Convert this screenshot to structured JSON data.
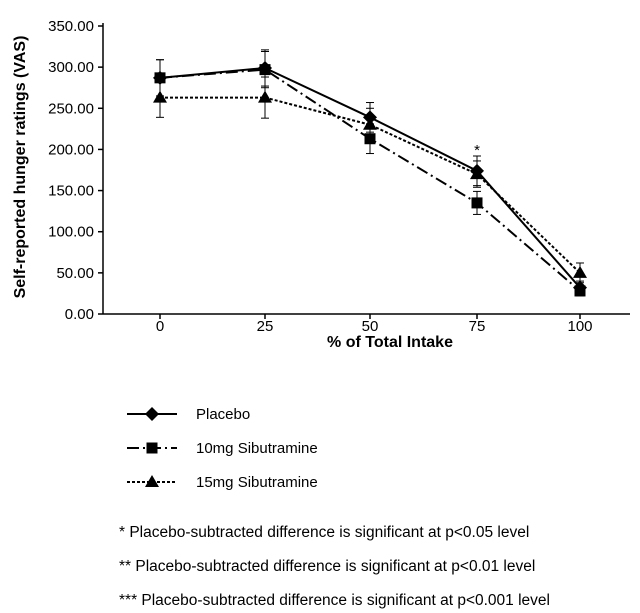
{
  "chart_data": {
    "type": "line",
    "xlabel": "% of Total Intake",
    "ylabel": "Self-reported hunger ratings (VAS)",
    "x": [
      0,
      25,
      50,
      75,
      100
    ],
    "x_tick_labels": [
      "0",
      "25",
      "50",
      "75",
      "100"
    ],
    "ylim": [
      0,
      350
    ],
    "y_tick_labels": [
      "0.00",
      "50.00",
      "100.00",
      "150.00",
      "200.00",
      "250.00",
      "300.00",
      "350.00"
    ],
    "grid": false,
    "legend_position": "bottom-left",
    "series": [
      {
        "name": "Placebo",
        "marker": "diamond",
        "line_style": "solid",
        "values": [
          287,
          299,
          239,
          174,
          32
        ],
        "error": [
          22,
          22,
          18,
          18,
          8
        ]
      },
      {
        "name": "10mg Sibutramine",
        "marker": "square",
        "line_style": "dash-dot",
        "values": [
          287,
          297,
          213,
          135,
          28
        ],
        "error": [
          22,
          22,
          18,
          14,
          6
        ]
      },
      {
        "name": "15mg Sibutramine",
        "marker": "triangle",
        "line_style": "dotted",
        "values": [
          263,
          263,
          230,
          170,
          50
        ],
        "error": [
          24,
          25,
          20,
          16,
          12
        ]
      }
    ],
    "annotations": [
      {
        "text": "*",
        "x": 75,
        "y": 193
      }
    ]
  },
  "notes": [
    "* Placebo-subtracted difference is significant at p<0.05 level",
    "** Placebo-subtracted difference is significant at p<0.01 level",
    "*** Placebo-subtracted difference is significant at p<0.001 level"
  ]
}
